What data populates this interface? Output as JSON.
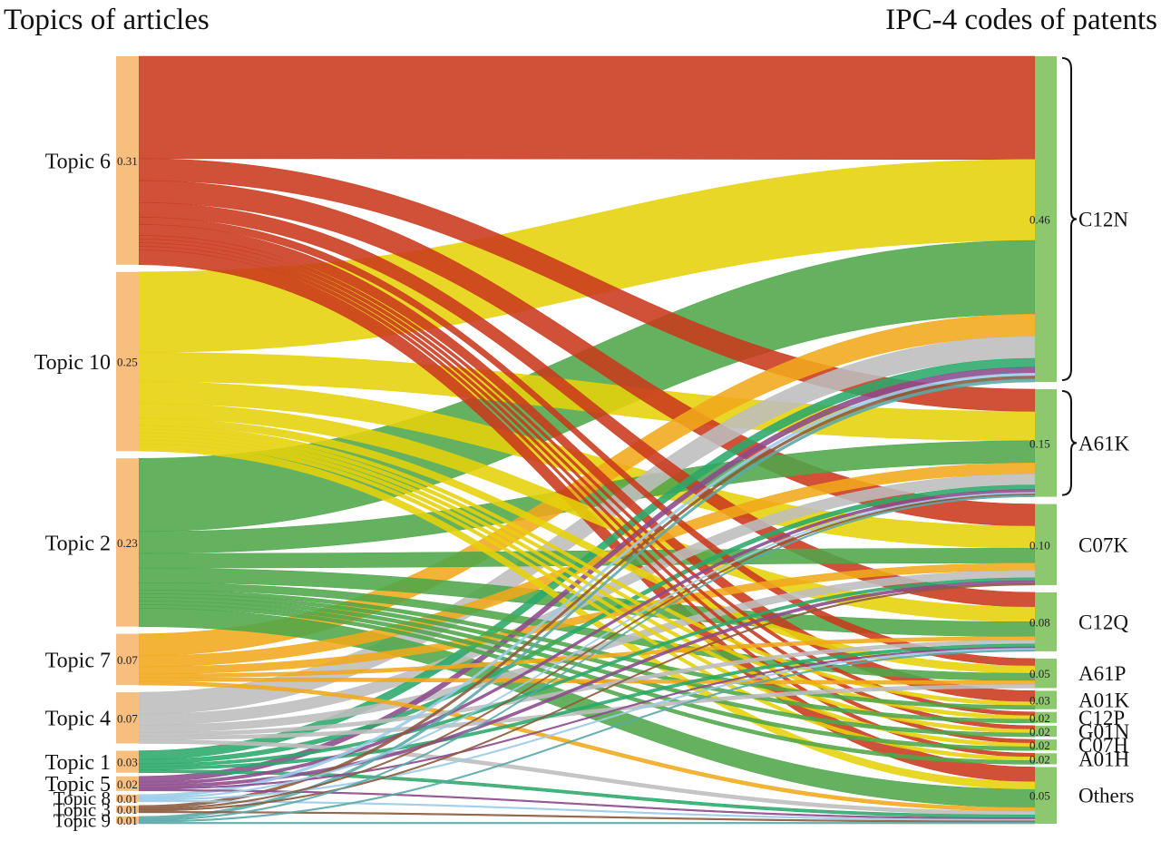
{
  "titles": {
    "left": "Topics of articles",
    "right": "IPC-4 codes of patents"
  },
  "chart_data": {
    "type": "sankey",
    "sources": [
      {
        "id": "Topic 6",
        "label": "Topic 6",
        "value": "0.31",
        "color": "#c9391c"
      },
      {
        "id": "Topic 10",
        "label": "Topic 10",
        "value": "0.25",
        "color": "#e6d20a"
      },
      {
        "id": "Topic 2",
        "label": "Topic 2",
        "value": "0.23",
        "color": "#4ea649"
      },
      {
        "id": "Topic 7",
        "label": "Topic 7",
        "value": "0.07",
        "color": "#f0a91a"
      },
      {
        "id": "Topic 4",
        "label": "Topic 4",
        "value": "0.07",
        "color": "#bdbdbd"
      },
      {
        "id": "Topic 1",
        "label": "Topic 1",
        "value": "0.03",
        "color": "#2aa86a"
      },
      {
        "id": "Topic 5",
        "label": "Topic 5",
        "value": "0.02",
        "color": "#8c4a8c"
      },
      {
        "id": "Topic 8",
        "label": "Topic 8",
        "value": "0.01",
        "color": "#9ccbe8"
      },
      {
        "id": "Topic 3",
        "label": "Topic 3",
        "value": "0.01",
        "color": "#8c5a3c"
      },
      {
        "id": "Topic 9",
        "label": "Topic 9",
        "value": "0.01",
        "color": "#5aa8a8"
      }
    ],
    "targets": [
      {
        "id": "C12N",
        "label": "C12N",
        "value": "0.46",
        "brace": true
      },
      {
        "id": "A61K",
        "label": "A61K",
        "value": "0.15",
        "brace": true
      },
      {
        "id": "C07K",
        "label": "C07K",
        "value": "0.10",
        "brace": false
      },
      {
        "id": "C12Q",
        "label": "C12Q",
        "value": "0.08",
        "brace": false
      },
      {
        "id": "A61P",
        "label": "A61P",
        "value": "0.05",
        "brace": false
      },
      {
        "id": "A01K",
        "label": "A01K",
        "value": "0.03",
        "brace": false
      },
      {
        "id": "C12P",
        "label": "C12P",
        "value": "0.02",
        "brace": false
      },
      {
        "id": "G01N",
        "label": "G01N",
        "value": "0.02",
        "brace": false
      },
      {
        "id": "C07H",
        "label": "C07H",
        "value": "0.02",
        "brace": false
      },
      {
        "id": "A01H",
        "label": "A01H",
        "value": "0.02",
        "brace": false
      },
      {
        "id": "Others",
        "label": "Others",
        "value": "0.05",
        "brace": false
      }
    ],
    "node_colors": {
      "source_bar": "#f7be7e",
      "target_bar": "#8cc96e"
    },
    "flows": [
      [
        "Topic 6",
        "C12N",
        0.14
      ],
      [
        "Topic 6",
        "A61K",
        0.03
      ],
      [
        "Topic 6",
        "C07K",
        0.03
      ],
      [
        "Topic 6",
        "C12Q",
        0.02
      ],
      [
        "Topic 6",
        "A61P",
        0.01
      ],
      [
        "Topic 6",
        "A01K",
        0.015
      ],
      [
        "Topic 6",
        "C12P",
        0.005
      ],
      [
        "Topic 6",
        "G01N",
        0.005
      ],
      [
        "Topic 6",
        "C07H",
        0.005
      ],
      [
        "Topic 6",
        "A01H",
        0.005
      ],
      [
        "Topic 6",
        "Others",
        0.02
      ],
      [
        "Topic 10",
        "C12N",
        0.11
      ],
      [
        "Topic 10",
        "A61K",
        0.04
      ],
      [
        "Topic 10",
        "C07K",
        0.03
      ],
      [
        "Topic 10",
        "C12Q",
        0.02
      ],
      [
        "Topic 10",
        "A61P",
        0.01
      ],
      [
        "Topic 10",
        "A01K",
        0.005
      ],
      [
        "Topic 10",
        "C12P",
        0.005
      ],
      [
        "Topic 10",
        "G01N",
        0.005
      ],
      [
        "Topic 10",
        "C07H",
        0.005
      ],
      [
        "Topic 10",
        "A01H",
        0.005
      ],
      [
        "Topic 10",
        "Others",
        0.01
      ],
      [
        "Topic 2",
        "C12N",
        0.1
      ],
      [
        "Topic 2",
        "A61K",
        0.03
      ],
      [
        "Topic 2",
        "C07K",
        0.02
      ],
      [
        "Topic 2",
        "C12Q",
        0.02
      ],
      [
        "Topic 2",
        "A61P",
        0.01
      ],
      [
        "Topic 2",
        "A01K",
        0.005
      ],
      [
        "Topic 2",
        "C12P",
        0.005
      ],
      [
        "Topic 2",
        "G01N",
        0.005
      ],
      [
        "Topic 2",
        "C07H",
        0.005
      ],
      [
        "Topic 2",
        "A01H",
        0.005
      ],
      [
        "Topic 2",
        "Others",
        0.025
      ],
      [
        "Topic 7",
        "C12N",
        0.03
      ],
      [
        "Topic 7",
        "A61K",
        0.015
      ],
      [
        "Topic 7",
        "C07K",
        0.01
      ],
      [
        "Topic 7",
        "C12Q",
        0.005
      ],
      [
        "Topic 7",
        "A61P",
        0.005
      ],
      [
        "Topic 7",
        "Others",
        0.005
      ],
      [
        "Topic 4",
        "C12N",
        0.03
      ],
      [
        "Topic 4",
        "A61K",
        0.015
      ],
      [
        "Topic 4",
        "C07K",
        0.01
      ],
      [
        "Topic 4",
        "C12Q",
        0.005
      ],
      [
        "Topic 4",
        "A61P",
        0.005
      ],
      [
        "Topic 4",
        "Others",
        0.005
      ],
      [
        "Topic 1",
        "C12N",
        0.012
      ],
      [
        "Topic 1",
        "A61K",
        0.006
      ],
      [
        "Topic 1",
        "C07K",
        0.004
      ],
      [
        "Topic 1",
        "C12Q",
        0.004
      ],
      [
        "Topic 1",
        "Others",
        0.004
      ],
      [
        "Topic 5",
        "C12N",
        0.008
      ],
      [
        "Topic 5",
        "A61K",
        0.004
      ],
      [
        "Topic 5",
        "C07K",
        0.004
      ],
      [
        "Topic 5",
        "C12Q",
        0.002
      ],
      [
        "Topic 5",
        "Others",
        0.002
      ],
      [
        "Topic 8",
        "C12N",
        0.004
      ],
      [
        "Topic 8",
        "A61K",
        0.002
      ],
      [
        "Topic 8",
        "C12Q",
        0.002
      ],
      [
        "Topic 8",
        "Others",
        0.002
      ],
      [
        "Topic 3",
        "C12N",
        0.004
      ],
      [
        "Topic 3",
        "A61K",
        0.002
      ],
      [
        "Topic 3",
        "C07K",
        0.002
      ],
      [
        "Topic 3",
        "Others",
        0.002
      ],
      [
        "Topic 9",
        "C12N",
        0.004
      ],
      [
        "Topic 9",
        "A61K",
        0.002
      ],
      [
        "Topic 9",
        "C12Q",
        0.002
      ],
      [
        "Topic 9",
        "Others",
        0.002
      ]
    ]
  }
}
